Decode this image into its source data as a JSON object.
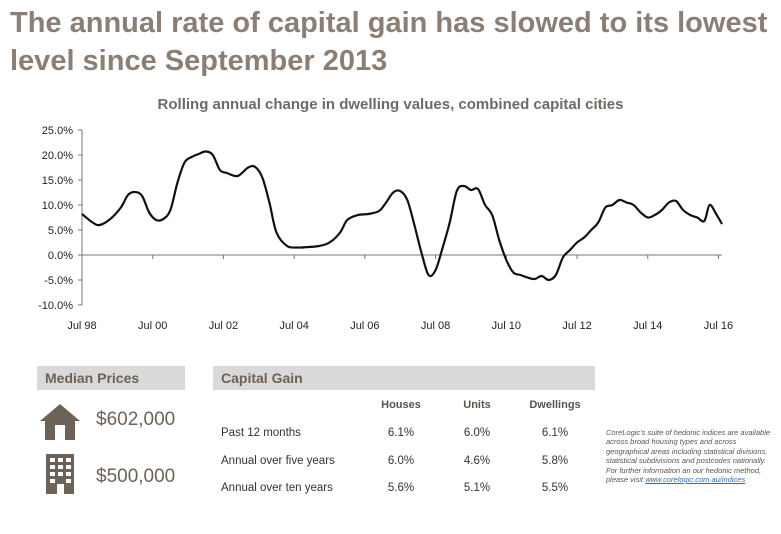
{
  "headline": "The annual rate of capital gain has slowed to its lowest level since September 2013",
  "chart_data": {
    "type": "line",
    "title": "Rolling annual change in dwelling values, combined capital cities",
    "x_tick_labels": [
      "Jul 98",
      "Jul 00",
      "Jul 02",
      "Jul 04",
      "Jul 06",
      "Jul 08",
      "Jul 10",
      "Jul 12",
      "Jul 14",
      "Jul 16"
    ],
    "y_tick_labels": [
      "25.0%",
      "20.0%",
      "15.0%",
      "10.0%",
      "5.0%",
      "0.0%",
      "-5.0%",
      "-10.0%"
    ],
    "ylim": [
      -10,
      25
    ],
    "xlim": [
      1998.5,
      2016.6
    ],
    "grid": false,
    "series": [
      {
        "color": "#111111",
        "x": [
          1998.5,
          1998.8,
          1999.0,
          1999.3,
          1999.6,
          1999.8,
          2000.0,
          2000.2,
          2000.4,
          2000.6,
          2000.8,
          2001.0,
          2001.2,
          2001.4,
          2001.6,
          2001.8,
          2002.0,
          2002.2,
          2002.4,
          2002.6,
          2002.9,
          2003.2,
          2003.4,
          2003.6,
          2003.8,
          2004.0,
          2004.3,
          2004.6,
          2004.9,
          2005.2,
          2005.5,
          2005.8,
          2006.0,
          2006.3,
          2006.6,
          2006.9,
          2007.1,
          2007.3,
          2007.5,
          2007.7,
          2007.9,
          2008.1,
          2008.3,
          2008.5,
          2008.7,
          2008.9,
          2009.1,
          2009.3,
          2009.5,
          2009.7,
          2009.9,
          2010.1,
          2010.3,
          2010.5,
          2010.7,
          2010.9,
          2011.1,
          2011.3,
          2011.5,
          2011.7,
          2011.9,
          2012.1,
          2012.3,
          2012.5,
          2012.7,
          2012.9,
          2013.1,
          2013.3,
          2013.5,
          2013.7,
          2013.9,
          2014.1,
          2014.3,
          2014.5,
          2014.7,
          2014.9,
          2015.1,
          2015.3,
          2015.5,
          2015.7,
          2015.9,
          2016.1,
          2016.25,
          2016.45,
          2016.6
        ],
        "y": [
          8.2,
          6.5,
          6.0,
          7.2,
          9.5,
          12.0,
          12.6,
          11.8,
          8.5,
          7.0,
          7.2,
          9.0,
          14.5,
          18.5,
          19.6,
          20.2,
          20.7,
          20.0,
          17.0,
          16.4,
          15.8,
          17.5,
          17.6,
          15.5,
          10.5,
          4.5,
          1.8,
          1.5,
          1.6,
          1.8,
          2.5,
          4.5,
          7.0,
          8.0,
          8.2,
          8.8,
          10.5,
          12.5,
          12.8,
          11.0,
          6.0,
          0.5,
          -4.0,
          -3.0,
          1.5,
          6.5,
          12.8,
          13.8,
          13.0,
          13.2,
          10.0,
          8.0,
          3.0,
          -1.0,
          -3.5,
          -4.0,
          -4.5,
          -4.8,
          -4.2,
          -5.0,
          -4.0,
          -0.5,
          1.0,
          2.5,
          3.5,
          5.0,
          6.5,
          9.5,
          10.0,
          11.0,
          10.5,
          10.0,
          8.5,
          7.5,
          8.0,
          9.0,
          10.5,
          10.8,
          9.0,
          8.0,
          7.5,
          6.8,
          10.0,
          8.0,
          6.2
        ]
      }
    ]
  },
  "median_prices": {
    "title": "Median Prices",
    "houses": "$602,000",
    "units": "$500,000"
  },
  "capital_gain": {
    "title": "Capital Gain",
    "columns": [
      "Houses",
      "Units",
      "Dwellings"
    ],
    "rows": [
      {
        "label": "Past 12 months",
        "values": [
          "6.1%",
          "6.0%",
          "6.1%"
        ]
      },
      {
        "label": "Annual over five years",
        "values": [
          "6.0%",
          "4.6%",
          "5.8%"
        ]
      },
      {
        "label": "Annual over ten years",
        "values": [
          "5.6%",
          "5.1%",
          "5.5%"
        ]
      }
    ]
  },
  "note": {
    "text": "CoreLogic's suite of hedonic indices are available across broad housing types and across geographical areas including statistical divisions, statistical subdivisions and postcodes nationally.  For further information an our hedonic method, please visit ",
    "link": "www.corelogic.com.au/indices"
  },
  "colors": {
    "headline": "#8b7f75",
    "panel": "#d9d9d9",
    "icon": "#6d6257",
    "line": "#111111"
  }
}
